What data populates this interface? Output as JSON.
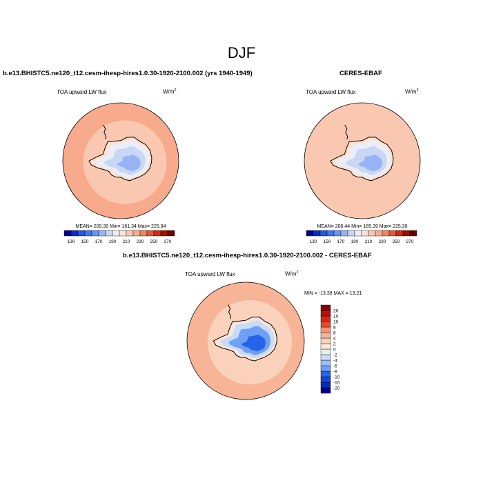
{
  "figure": {
    "title": "DJF"
  },
  "palettes": {
    "abs": [
      "#00008b",
      "#0a2cc8",
      "#1e5ae6",
      "#3c78f0",
      "#6496f5",
      "#96b4f5",
      "#c8d7f5",
      "#ebeef8",
      "#fbe4d6",
      "#fac8b0",
      "#f8aa8c",
      "#f28264",
      "#e6553c",
      "#d22814",
      "#a01000",
      "#6e0000"
    ],
    "diff": [
      "#00008b",
      "#0a28be",
      "#1446dc",
      "#2864eb",
      "#4682f5",
      "#6ea0f5",
      "#9cbef5",
      "#c8dcf8",
      "#e6eefa",
      "#fbe6d8",
      "#fad2bc",
      "#f8b496",
      "#f59678",
      "#ee7052",
      "#e64a2d",
      "#d72814",
      "#b91000",
      "#8c0000"
    ]
  },
  "chart_data": [
    {
      "type": "heatmap",
      "projection": "south-polar-stereographic",
      "title": "b.e13.BHISTC5.ne120_t12.cesm-ihesp-hires1.0.30-1920-2100.002 (yrs 1940-1949)",
      "variable": "TOA upward LW flux",
      "units": "W/m",
      "units_sup": "2",
      "stats_text": "MEAN= 209.39  Min= 161.34  Max= 225.94",
      "mean": 209.39,
      "min": 161.34,
      "max": 225.94,
      "colorbar_levels": [
        130,
        140,
        150,
        160,
        170,
        180,
        190,
        200,
        210,
        220,
        230,
        240,
        250,
        260,
        270
      ],
      "colorbar_labels": [
        "130",
        "150",
        "170",
        "190",
        "210",
        "230",
        "250",
        "270"
      ],
      "region_values": {
        "ocean": 218,
        "ocean_far": 220,
        "coast": 205,
        "plateau_edge": 190,
        "plateau": 180,
        "plateau_core": 172
      }
    },
    {
      "type": "heatmap",
      "projection": "south-polar-stereographic",
      "title": "CERES-EBAF",
      "variable": "TOA upward LW flux",
      "units": "W/m",
      "units_sup": "2",
      "stats_text": "MEAN= 206.44  Min= 165.39  Max= 225.30",
      "mean": 206.44,
      "min": 165.39,
      "max": 225.3,
      "colorbar_levels": [
        130,
        140,
        150,
        160,
        170,
        180,
        190,
        200,
        210,
        220,
        230,
        240,
        250,
        260,
        270
      ],
      "colorbar_labels": [
        "130",
        "150",
        "170",
        "190",
        "210",
        "230",
        "250",
        "270"
      ],
      "region_values": {
        "ocean": 216,
        "ocean_far": 219,
        "coast": 203,
        "plateau_edge": 190,
        "plateau": 182,
        "plateau_core": 175
      }
    },
    {
      "type": "heatmap",
      "projection": "south-polar-stereographic",
      "title": "b.e13.BHISTC5.ne120_t12.cesm-ihesp-hires1.0.30-1920-2100.002 - CERES-EBAF",
      "variable": "TOA upward LW flux",
      "units": "W/m",
      "units_sup": "2",
      "stats_text": "MIN = -13.38  MAX =  13.21",
      "min": -13.38,
      "max": 13.21,
      "colorbar_levels": [
        -20,
        -15,
        -10,
        -8,
        -6,
        -4,
        -2,
        0,
        2,
        4,
        6,
        8,
        10,
        15,
        20
      ],
      "colorbar_labels": [
        "-20",
        "-15",
        "-10",
        "-8",
        "-6",
        "-4",
        "-2",
        "0",
        "2",
        "4",
        "6",
        "8",
        "10",
        "15",
        "20"
      ],
      "region_values": {
        "ocean": 4,
        "ocean_far": 6,
        "coast": 2,
        "plateau_edge": -2,
        "plateau": -6,
        "plateau_core": -10
      }
    }
  ]
}
